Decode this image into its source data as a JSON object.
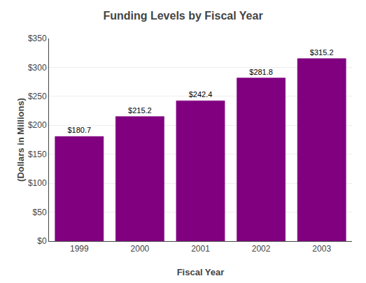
{
  "chart_data": {
    "type": "bar",
    "title": "Funding Levels by Fiscal Year",
    "xlabel": "Fiscal Year",
    "ylabel": "(Dollars in Millions)",
    "categories": [
      "1999",
      "2000",
      "2001",
      "2002",
      "2003"
    ],
    "values": [
      180.7,
      215.2,
      242.4,
      281.8,
      315.2
    ],
    "value_labels": [
      "$180.7",
      "$215.2",
      "$242.4",
      "$281.8",
      "$315.2"
    ],
    "data_labels": true,
    "color": "#800080",
    "ylim": [
      0,
      350
    ],
    "yticks": [
      {
        "value": 0,
        "label": "$0"
      },
      {
        "value": 50,
        "label": "$50"
      },
      {
        "value": 100,
        "label": "$100"
      },
      {
        "value": 150,
        "label": "$150"
      },
      {
        "value": 200,
        "label": "$200"
      },
      {
        "value": 250,
        "label": "$250"
      },
      {
        "value": 300,
        "label": "$300"
      },
      {
        "value": 350,
        "label": "$350"
      }
    ],
    "grid": true
  }
}
